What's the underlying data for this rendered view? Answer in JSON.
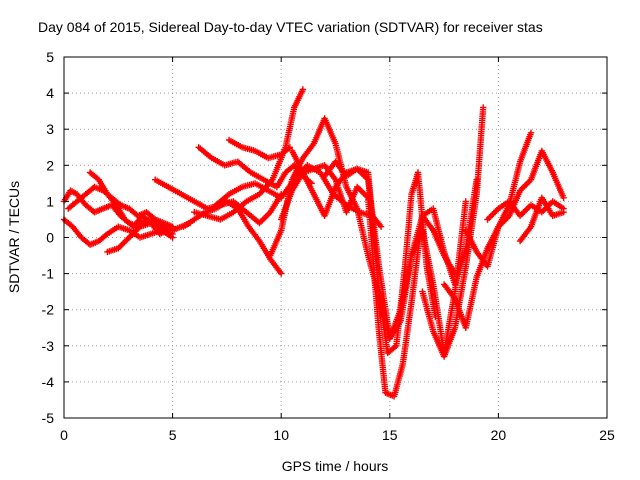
{
  "chart_data": {
    "type": "scatter",
    "title": "Day 084 of 2015, Sidereal Day-to-day VTEC variation (SDTVAR) for receiver stas",
    "xlabel": "GPS time / hours",
    "ylabel": "SDTVAR / TECUs",
    "xlim": [
      0,
      25
    ],
    "ylim": [
      -5,
      5
    ],
    "xticks": [
      "0",
      "5",
      "10",
      "15",
      "20",
      "25"
    ],
    "yticks": [
      "-5",
      "-4",
      "-3",
      "-2",
      "-1",
      "0",
      "1",
      "2",
      "3",
      "4",
      "5"
    ],
    "grid": true,
    "marker": "plus",
    "color": "#ff0000",
    "series": [
      {
        "x": [
          0,
          0.3,
          0.6,
          1,
          1.4,
          1.8,
          2.2,
          2.6,
          3,
          3.4,
          3.8,
          4.2,
          4.6,
          5,
          5.4,
          5.8
        ],
        "y": [
          1,
          1.3,
          1.2,
          0.9,
          0.7,
          0.8,
          0.9,
          0.6,
          0.4,
          0.3,
          0.5,
          0.4,
          0.3,
          0.2,
          0.3,
          0.4
        ]
      },
      {
        "x": [
          0,
          0.4,
          0.8,
          1.2,
          1.6,
          2,
          2.5,
          3,
          3.5,
          4,
          4.5,
          5
        ],
        "y": [
          0.5,
          0.3,
          0,
          -0.2,
          -0.1,
          0.1,
          0.3,
          0.2,
          0,
          0.1,
          0.2,
          0.1
        ]
      },
      {
        "x": [
          0.2,
          0.6,
          1,
          1.4,
          1.8,
          2.2,
          2.6,
          3,
          3.4,
          3.8,
          4.2,
          4.6,
          5
        ],
        "y": [
          0.8,
          1,
          1.2,
          1.4,
          1.3,
          1.1,
          0.9,
          0.8,
          0.6,
          0.7,
          0.5,
          0.4,
          0.3
        ]
      },
      {
        "x": [
          1.2,
          1.6,
          2,
          2.4,
          2.8,
          3.2,
          3.6,
          4,
          4.4,
          4.8
        ],
        "y": [
          1.8,
          1.6,
          1.2,
          0.9,
          0.5,
          0.3,
          0.6,
          0.4,
          0.1,
          0.2
        ]
      },
      {
        "x": [
          2,
          2.5,
          3,
          3.5,
          4,
          4.5,
          5
        ],
        "y": [
          -0.4,
          -0.3,
          0,
          0.3,
          0.4,
          0.2,
          0
        ]
      },
      {
        "x": [
          4.2,
          4.8,
          5.4,
          6,
          6.6,
          7.2,
          7.8,
          8.4,
          9,
          9.5,
          10
        ],
        "y": [
          1.6,
          1.4,
          1.2,
          1,
          0.8,
          0.9,
          1,
          0.7,
          0.4,
          0.7,
          1.2
        ]
      },
      {
        "x": [
          5.5,
          6,
          6.5,
          7,
          7.5,
          8,
          8.5,
          9,
          9.5,
          10
        ],
        "y": [
          0.3,
          0.5,
          0.7,
          0.8,
          1,
          0.8,
          0.3,
          -0.1,
          -0.6,
          -1
        ]
      },
      {
        "x": [
          6,
          6.6,
          7.2,
          7.8,
          8.4,
          9,
          9.6,
          10.2,
          10.6,
          11
        ],
        "y": [
          0.7,
          0.6,
          0.5,
          0.7,
          1,
          1.2,
          1.6,
          2.5,
          3.6,
          4.1
        ]
      },
      {
        "x": [
          6.2,
          6.8,
          7.4,
          8,
          8.6,
          9.2,
          9.8,
          10.2,
          10.6,
          11,
          11.4
        ],
        "y": [
          2.5,
          2.2,
          2,
          2.1,
          1.8,
          1.6,
          1.4,
          1.8,
          2,
          1.7,
          1.5
        ]
      },
      {
        "x": [
          7.6,
          8.2,
          8.8,
          9.4,
          10,
          10.4
        ],
        "y": [
          2.7,
          2.5,
          2.4,
          2.2,
          2.3,
          2.5
        ]
      },
      {
        "x": [
          7,
          7.6,
          8.2,
          8.8,
          9.4,
          10,
          10.6,
          11.2,
          11.8,
          12.4,
          13,
          13.6,
          14.2,
          14.6
        ],
        "y": [
          0.9,
          1.2,
          1.4,
          1.5,
          1.3,
          1.1,
          1.6,
          2,
          1.8,
          1.2,
          0.9,
          0.7,
          0.6,
          0.3
        ]
      },
      {
        "x": [
          9.5,
          10,
          10.5,
          11,
          11.5,
          12,
          12.5,
          13,
          13.5,
          14,
          14.5,
          15,
          15.5,
          16,
          16.5,
          17,
          17.5,
          18
        ],
        "y": [
          -0.5,
          0.2,
          1.6,
          2.2,
          2.6,
          3.3,
          2.6,
          1.4,
          0.8,
          -0.5,
          -1.6,
          -2.8,
          -2,
          -0.5,
          0.6,
          0.2,
          -0.5,
          -1
        ]
      },
      {
        "x": [
          10.5,
          11,
          11.5,
          12,
          12.5,
          13,
          13.5,
          14,
          14.5,
          15,
          15.5,
          16,
          16.5,
          17,
          17.5,
          18,
          18.5
        ],
        "y": [
          2.4,
          1.8,
          1.2,
          0.6,
          1.4,
          1.8,
          1.9,
          1.6,
          -0.8,
          -2.8,
          -2.3,
          -0.5,
          0.2,
          -1.3,
          -3.2,
          -1.5,
          1
        ]
      },
      {
        "x": [
          10,
          10.5,
          11,
          11.5,
          12,
          12.5,
          13,
          13.5,
          14,
          14.5,
          14.8,
          15.2,
          15.6,
          16,
          16.5,
          17,
          17.5,
          18,
          18.5,
          19
        ],
        "y": [
          0.5,
          1.3,
          1.8,
          1.9,
          2,
          1.6,
          0.7,
          1.4,
          1.1,
          -2.6,
          -4.3,
          -4.4,
          -3.5,
          -1.8,
          0.6,
          0.8,
          -0.4,
          -1.3,
          -0.3,
          1.6
        ]
      },
      {
        "x": [
          12,
          12.5,
          13,
          13.5,
          14,
          14.5,
          14.9,
          15.3,
          15.7,
          16,
          16.3,
          16.7,
          17.1
        ],
        "y": [
          1.7,
          2.1,
          1.7,
          1.9,
          1.8,
          -1.5,
          -3.2,
          -3,
          -0.8,
          1.2,
          1.8,
          -0.8,
          -2.2
        ]
      },
      {
        "x": [
          16.5,
          17,
          17.5,
          18,
          18.5,
          19,
          19.3
        ],
        "y": [
          -1.5,
          -2.6,
          -3.3,
          -2.5,
          -0.8,
          1.2,
          3.6
        ]
      },
      {
        "x": [
          17.5,
          18,
          18.5,
          19,
          19.5,
          20,
          20.5,
          21,
          21.5
        ],
        "y": [
          -1.3,
          -1.7,
          -2.5,
          -1.1,
          -0.3,
          0.3,
          0.9,
          2.1,
          2.9
        ]
      },
      {
        "x": [
          18.5,
          19,
          19.5,
          20,
          20.5,
          21,
          21.5,
          22,
          22.5,
          23
        ],
        "y": [
          0.2,
          -0.4,
          -0.8,
          0.3,
          0.6,
          1.3,
          1.6,
          2.4,
          1.8,
          1.1
        ]
      },
      {
        "x": [
          21,
          21.5,
          22,
          22.5,
          23
        ],
        "y": [
          -0.1,
          0.3,
          1.1,
          0.6,
          0.7
        ]
      },
      {
        "x": [
          19.5,
          20,
          20.5,
          21,
          21.5,
          22,
          22.5,
          23
        ],
        "y": [
          0.5,
          0.8,
          1,
          0.6,
          0.9,
          0.7,
          1,
          0.8
        ]
      }
    ]
  }
}
